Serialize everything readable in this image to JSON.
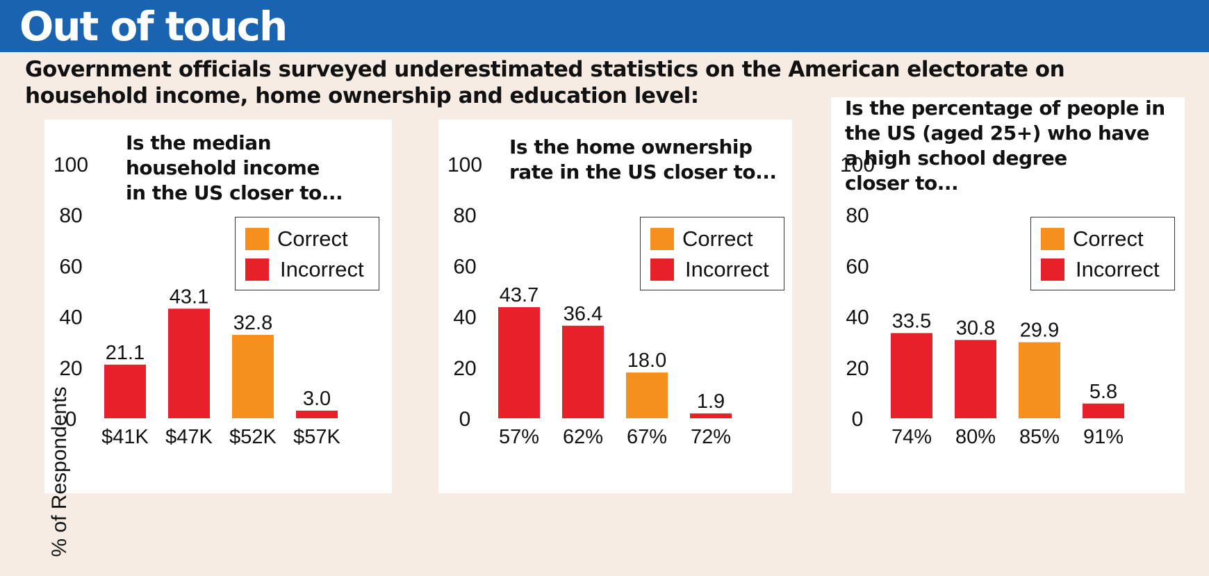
{
  "header": {
    "title": "Out of touch",
    "subtitle_line1": "Government officials surveyed underestimated statistics on the American electorate on",
    "subtitle_line2": "household income, home ownership and education level:"
  },
  "colors": {
    "banner": "#1a63b0",
    "correct": "#f5901f",
    "incorrect": "#e8202a"
  },
  "legend": {
    "correct": "Correct",
    "incorrect": "Incorrect"
  },
  "chart_data": [
    {
      "type": "bar",
      "title": "Is the median\nhousehold income\nin the US closer to...",
      "ylabel": "% of Respondents",
      "ylim": [
        0,
        100
      ],
      "yticks": [
        "0",
        "20",
        "40",
        "60",
        "80",
        "100"
      ],
      "categories": [
        "$41K",
        "$47K",
        "$52K",
        "$57K"
      ],
      "values": [
        21.1,
        43.1,
        32.8,
        3.0
      ],
      "value_labels": [
        "21.1",
        "43.1",
        "32.8",
        "3.0"
      ],
      "status": [
        "Incorrect",
        "Incorrect",
        "Correct",
        "Incorrect"
      ],
      "legend_position": "top-right",
      "grid": false
    },
    {
      "type": "bar",
      "title": "Is the home ownership\nrate in the US closer to...",
      "ylabel": "",
      "ylim": [
        0,
        100
      ],
      "yticks": [
        "0",
        "20",
        "40",
        "60",
        "80",
        "100"
      ],
      "categories": [
        "57%",
        "62%",
        "67%",
        "72%"
      ],
      "values": [
        43.7,
        36.4,
        18.0,
        1.9
      ],
      "value_labels": [
        "43.7",
        "36.4",
        "18.0",
        "1.9"
      ],
      "status": [
        "Incorrect",
        "Incorrect",
        "Correct",
        "Incorrect"
      ],
      "legend_position": "top-right",
      "grid": false
    },
    {
      "type": "bar",
      "title": "Is the percentage of people in\nthe US (aged 25+) who have\n      a high school degree\n      closer to...",
      "ylabel": "",
      "ylim": [
        0,
        100
      ],
      "yticks": [
        "0",
        "20",
        "40",
        "60",
        "80",
        "100"
      ],
      "categories": [
        "74%",
        "80%",
        "85%",
        "91%"
      ],
      "values": [
        33.5,
        30.8,
        29.9,
        5.8
      ],
      "value_labels": [
        "33.5",
        "30.8",
        "29.9",
        "5.8"
      ],
      "status": [
        "Incorrect",
        "Incorrect",
        "Correct",
        "Incorrect"
      ],
      "legend_position": "top-right",
      "grid": false
    }
  ]
}
